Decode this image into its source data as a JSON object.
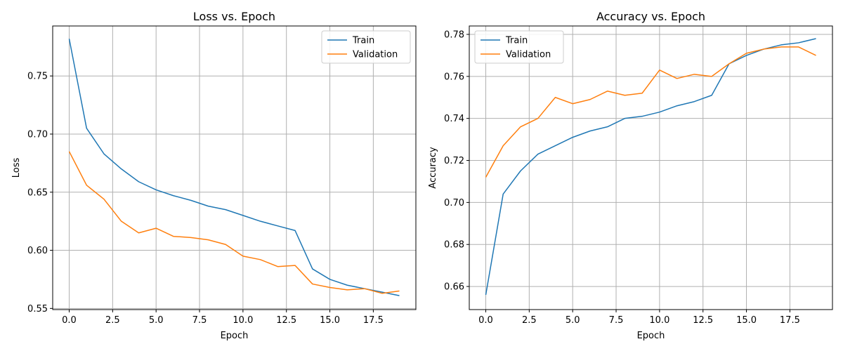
{
  "chart_data": [
    {
      "type": "line",
      "title": "Loss vs. Epoch",
      "xlabel": "Epoch",
      "ylabel": "Loss",
      "xlim": [
        -0.95,
        19.95
      ],
      "ylim": [
        0.549,
        0.793
      ],
      "xticks": [
        0,
        2.5,
        5,
        7.5,
        10,
        12.5,
        15,
        17.5
      ],
      "xtick_labels": [
        "0.0",
        "2.5",
        "5.0",
        "7.5",
        "10.0",
        "12.5",
        "15.0",
        "17.5"
      ],
      "yticks": [
        0.55,
        0.6,
        0.65,
        0.7,
        0.75
      ],
      "ytick_labels": [
        "0.55",
        "0.60",
        "0.65",
        "0.70",
        "0.75"
      ],
      "grid": true,
      "legend": "top-right",
      "x": [
        0,
        1,
        2,
        3,
        4,
        5,
        6,
        7,
        8,
        9,
        10,
        11,
        12,
        13,
        14,
        15,
        16,
        17,
        18,
        19
      ],
      "series": [
        {
          "name": "Train",
          "color": "#1f77b4",
          "values": [
            0.782,
            0.705,
            0.683,
            0.67,
            0.659,
            0.652,
            0.647,
            0.643,
            0.638,
            0.635,
            0.63,
            0.625,
            0.621,
            0.617,
            0.584,
            0.575,
            0.57,
            0.567,
            0.564,
            0.561
          ]
        },
        {
          "name": "Validation",
          "color": "#ff7f0e",
          "values": [
            0.685,
            0.656,
            0.644,
            0.625,
            0.615,
            0.619,
            0.612,
            0.611,
            0.609,
            0.605,
            0.595,
            0.592,
            0.586,
            0.587,
            0.571,
            0.568,
            0.566,
            0.567,
            0.563,
            0.565
          ]
        }
      ]
    },
    {
      "type": "line",
      "title": "Accuracy vs. Epoch",
      "xlabel": "Epoch",
      "ylabel": "Accuracy",
      "xlim": [
        -0.95,
        19.95
      ],
      "ylim": [
        0.649,
        0.784
      ],
      "xticks": [
        0,
        2.5,
        5,
        7.5,
        10,
        12.5,
        15,
        17.5
      ],
      "xtick_labels": [
        "0.0",
        "2.5",
        "5.0",
        "7.5",
        "10.0",
        "12.5",
        "15.0",
        "17.5"
      ],
      "yticks": [
        0.66,
        0.68,
        0.7,
        0.72,
        0.74,
        0.76,
        0.78
      ],
      "ytick_labels": [
        "0.66",
        "0.68",
        "0.70",
        "0.72",
        "0.74",
        "0.76",
        "0.78"
      ],
      "grid": true,
      "legend": "top-left",
      "x": [
        0,
        1,
        2,
        3,
        4,
        5,
        6,
        7,
        8,
        9,
        10,
        11,
        12,
        13,
        14,
        15,
        16,
        17,
        18,
        19
      ],
      "series": [
        {
          "name": "Train",
          "color": "#1f77b4",
          "values": [
            0.656,
            0.704,
            0.715,
            0.723,
            0.727,
            0.731,
            0.734,
            0.736,
            0.74,
            0.741,
            0.743,
            0.746,
            0.748,
            0.751,
            0.766,
            0.77,
            0.773,
            0.775,
            0.776,
            0.778
          ]
        },
        {
          "name": "Validation",
          "color": "#ff7f0e",
          "values": [
            0.712,
            0.727,
            0.736,
            0.74,
            0.75,
            0.747,
            0.749,
            0.753,
            0.751,
            0.752,
            0.763,
            0.759,
            0.761,
            0.76,
            0.766,
            0.771,
            0.773,
            0.774,
            0.774,
            0.77
          ]
        }
      ]
    }
  ]
}
